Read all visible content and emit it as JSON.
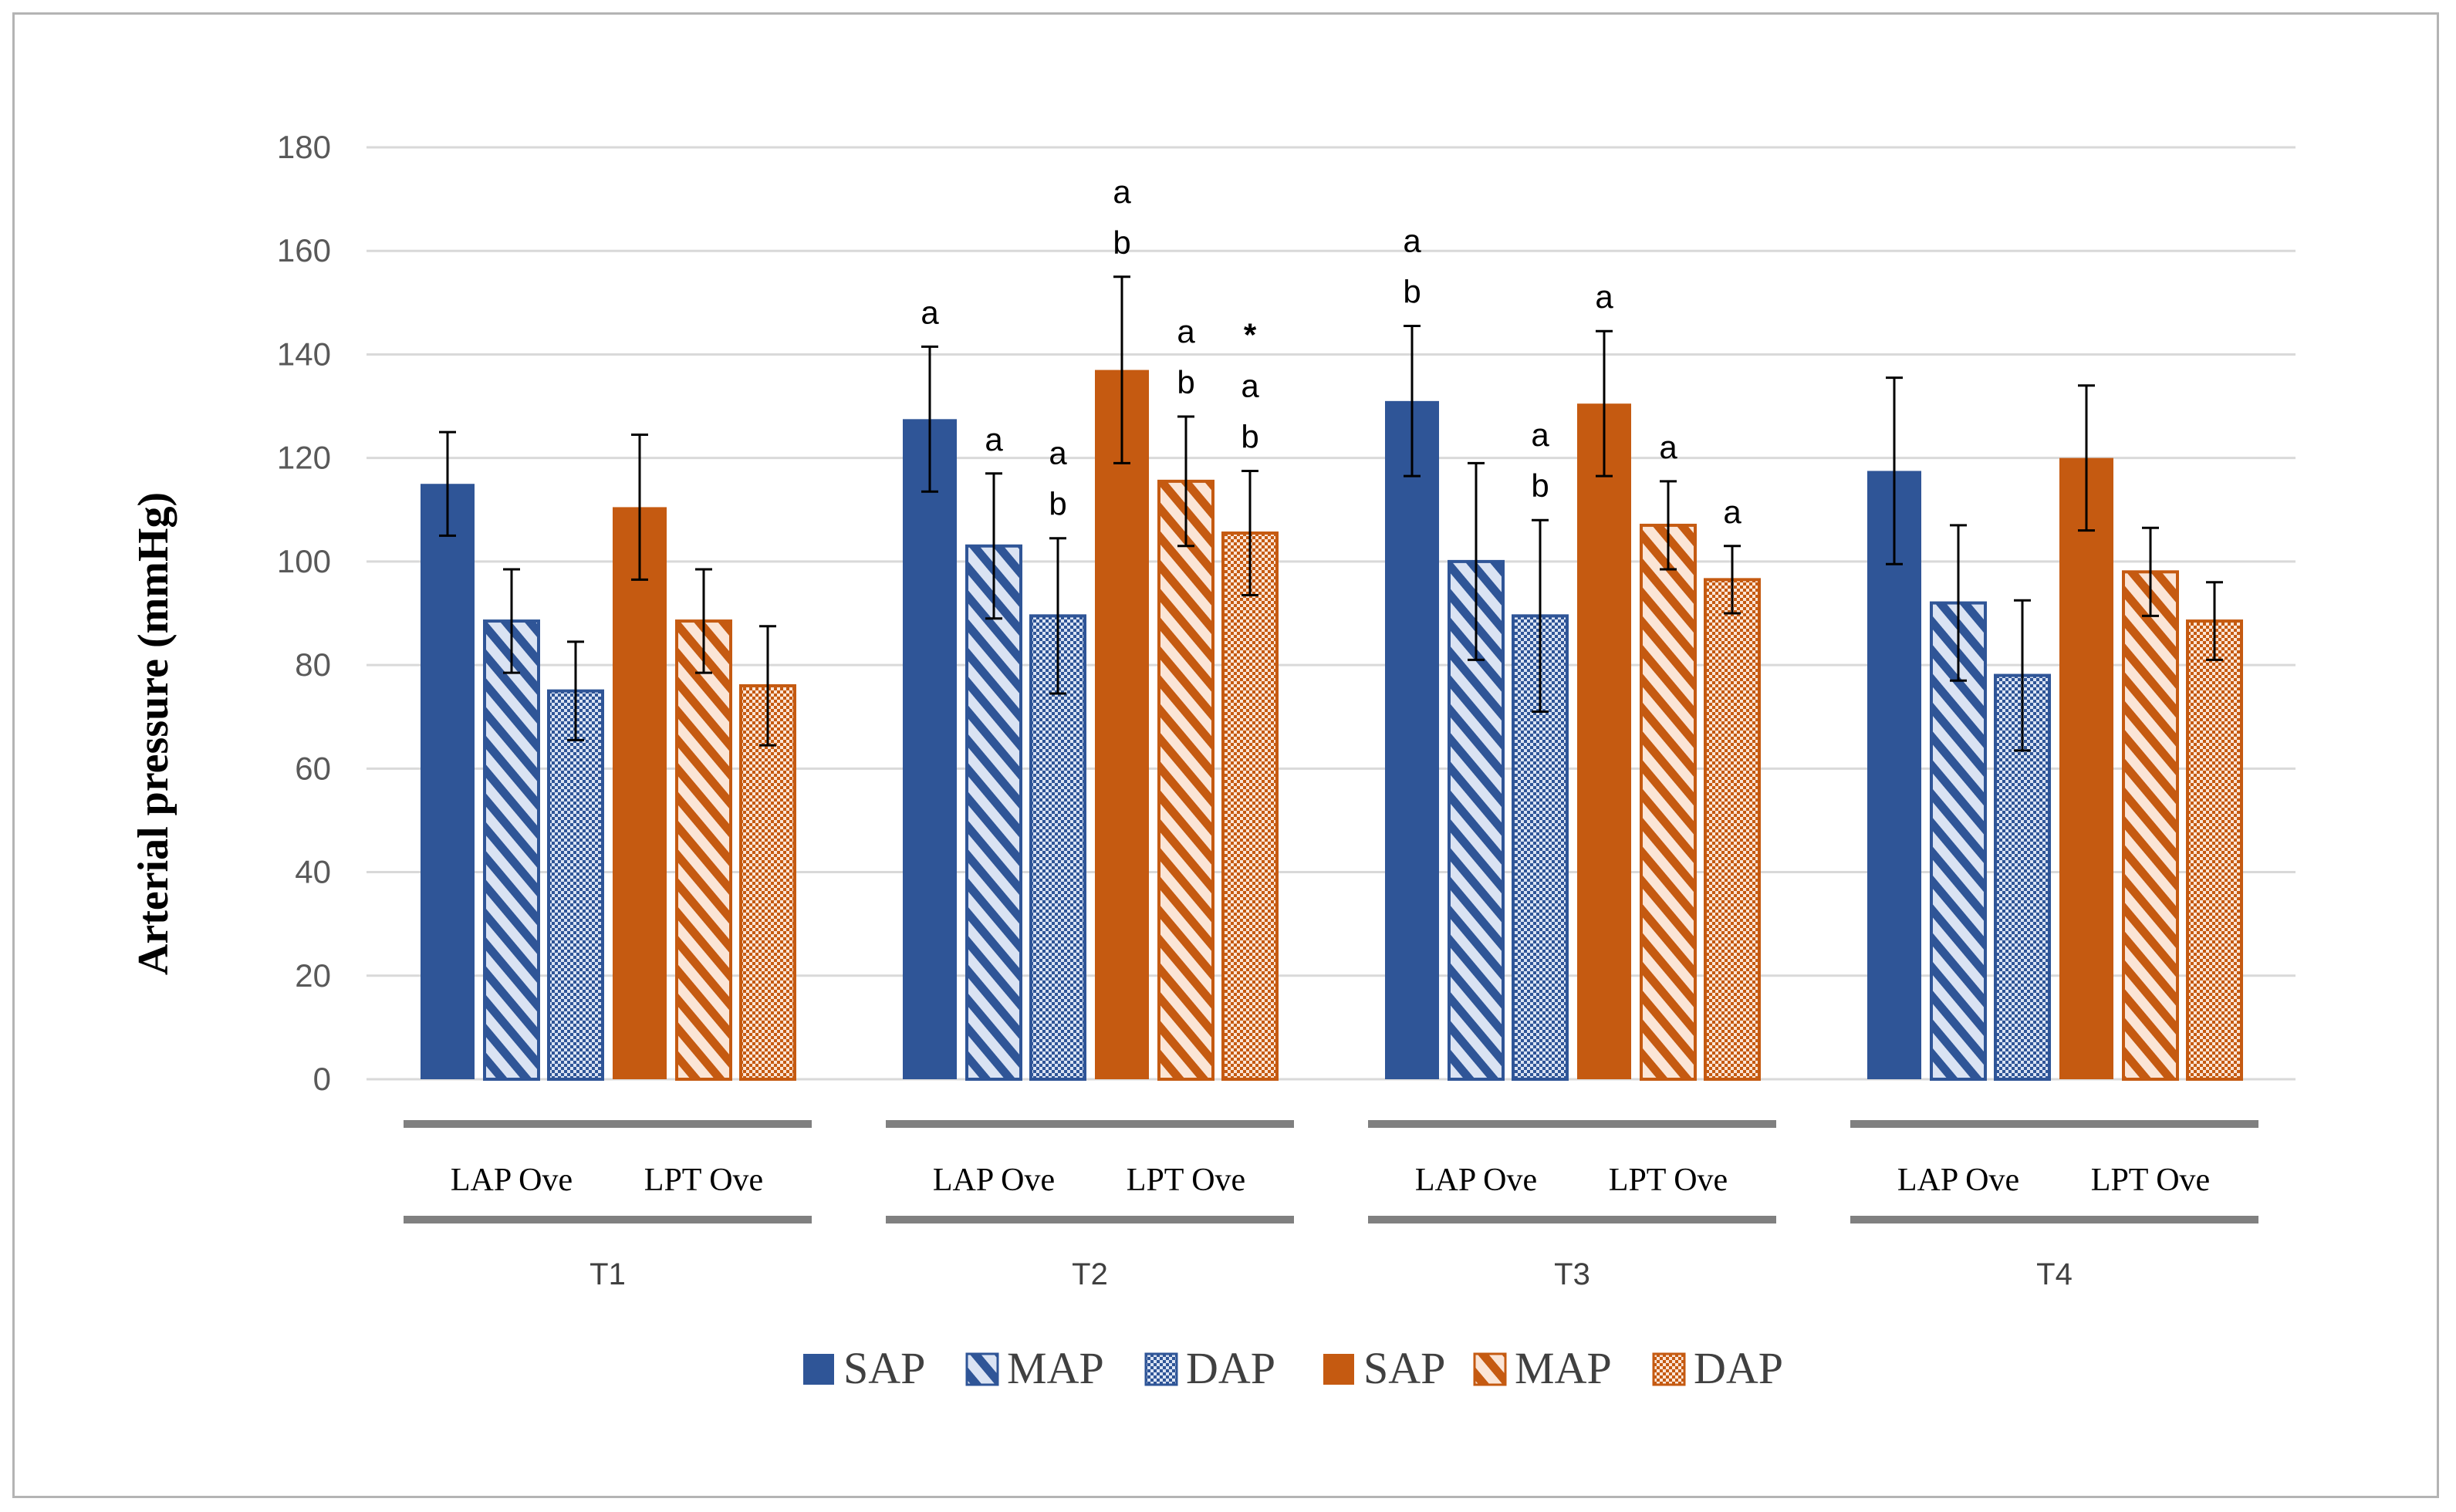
{
  "chart_data": {
    "type": "bar",
    "ylabel": "Arterial pressure (mmHg)",
    "ylim": [
      0,
      180
    ],
    "yticks": [
      0,
      20,
      40,
      60,
      80,
      100,
      120,
      140,
      160,
      180
    ],
    "grid": true,
    "timepoints": [
      "T1",
      "T2",
      "T3",
      "T4"
    ],
    "groups": [
      "LAP Ove",
      "LPT Ove"
    ],
    "series": [
      {
        "name": "SAP",
        "group": "LAP Ove",
        "color": "#2f5597",
        "pattern": "solid",
        "values": [
          115,
          127.5,
          131,
          117.5
        ],
        "errors": [
          10,
          14,
          14.5,
          18
        ]
      },
      {
        "name": "MAP",
        "group": "LAP Ove",
        "color": "#2f5597",
        "pattern": "diagonal",
        "values": [
          88.5,
          103,
          100,
          92
        ],
        "errors": [
          10,
          14,
          19,
          15
        ]
      },
      {
        "name": "DAP",
        "group": "LAP Ove",
        "color": "#2f5597",
        "pattern": "dotted",
        "values": [
          75,
          89.5,
          89.5,
          78
        ],
        "errors": [
          9.5,
          15,
          18.5,
          14.5
        ]
      },
      {
        "name": "SAP",
        "group": "LPT Ove",
        "color": "#c55a11",
        "pattern": "solid",
        "values": [
          110.5,
          137,
          130.5,
          120
        ],
        "errors": [
          14,
          18,
          14,
          14
        ]
      },
      {
        "name": "MAP",
        "group": "LPT Ove",
        "color": "#c55a11",
        "pattern": "diagonal",
        "values": [
          88.5,
          115.5,
          107,
          98
        ],
        "errors": [
          10,
          12.5,
          8.5,
          8.5
        ]
      },
      {
        "name": "DAP",
        "group": "LPT Ove",
        "color": "#c55a11",
        "pattern": "dotted",
        "values": [
          76,
          105.5,
          96.5,
          88.5
        ],
        "errors": [
          11.5,
          12,
          6.5,
          7.5
        ]
      }
    ],
    "annotations": [
      {
        "timepoint": "T2",
        "series": 0,
        "lines": [
          "a"
        ]
      },
      {
        "timepoint": "T2",
        "series": 1,
        "lines": [
          "a"
        ]
      },
      {
        "timepoint": "T2",
        "series": 2,
        "lines": [
          "a",
          "b"
        ]
      },
      {
        "timepoint": "T2",
        "series": 3,
        "lines": [
          "a",
          "b"
        ]
      },
      {
        "timepoint": "T2",
        "series": 4,
        "lines": [
          "a",
          "b"
        ]
      },
      {
        "timepoint": "T2",
        "series": 5,
        "lines": [
          "*",
          "a",
          "b"
        ]
      },
      {
        "timepoint": "T3",
        "series": 0,
        "lines": [
          "a",
          "b"
        ]
      },
      {
        "timepoint": "T3",
        "series": 2,
        "lines": [
          "a",
          "b"
        ]
      },
      {
        "timepoint": "T3",
        "series": 3,
        "lines": [
          "a"
        ]
      },
      {
        "timepoint": "T3",
        "series": 4,
        "lines": [
          "a"
        ]
      },
      {
        "timepoint": "T3",
        "series": 5,
        "lines": [
          "a"
        ]
      }
    ],
    "legend": {
      "position": "bottom",
      "items": [
        {
          "label": "SAP",
          "color": "#2f5597",
          "pattern": "solid"
        },
        {
          "label": "MAP",
          "color": "#2f5597",
          "pattern": "diagonal"
        },
        {
          "label": "DAP",
          "color": "#2f5597",
          "pattern": "dotted"
        },
        {
          "label": "SAP",
          "color": "#c55a11",
          "pattern": "solid"
        },
        {
          "label": "MAP",
          "color": "#c55a11",
          "pattern": "diagonal"
        },
        {
          "label": "DAP",
          "color": "#c55a11",
          "pattern": "dotted"
        }
      ]
    }
  }
}
